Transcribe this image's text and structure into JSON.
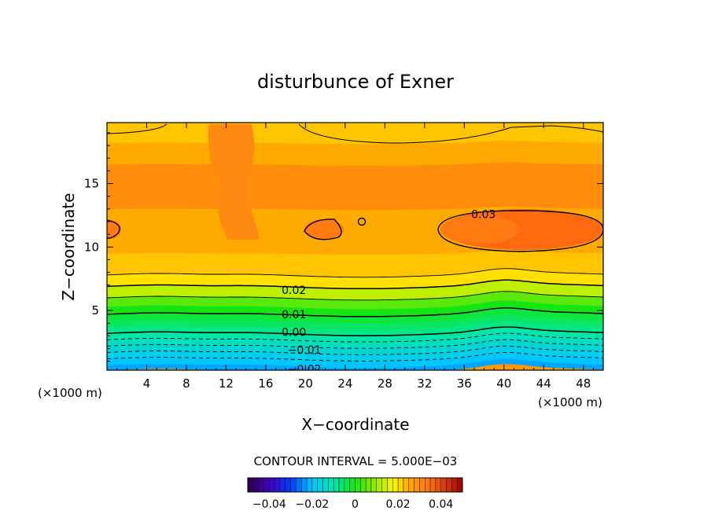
{
  "chart_data": {
    "type": "heatmap",
    "subtype": "filled contour",
    "title": "disturbunce of Exner",
    "xlabel": "X−coordinate",
    "ylabel": "Z−coordinate",
    "x_units": "(×1000 m)",
    "x_units_right": "(×1000 m)",
    "xlim": [
      0,
      50
    ],
    "ylim": [
      0.3,
      19.8
    ],
    "xticks": [
      "4",
      "8",
      "12",
      "16",
      "20",
      "24",
      "28",
      "32",
      "36",
      "40",
      "44",
      "48"
    ],
    "yticks": [
      "5",
      "10",
      "15"
    ],
    "contour_interval_label": "CONTOUR INTERVAL = 5.000E−03",
    "contour_labels": [
      {
        "text": "0.03",
        "x": 36.7,
        "z": 12.6
      },
      {
        "text": "0.02",
        "x": 17.6,
        "z": 6.6
      },
      {
        "text": "0.01",
        "x": 17.6,
        "z": 4.7
      },
      {
        "text": "0.00",
        "x": 17.6,
        "z": 3.3
      },
      {
        "text": "−0.01",
        "x": 18.2,
        "z": 1.9
      },
      {
        "text": "−0.02",
        "x": 18.2,
        "z": 0.4
      }
    ],
    "colorbar": {
      "ticks": [
        "−0.04",
        "−0.02",
        "0",
        "0.02",
        "0.04"
      ],
      "tick_values": [
        -0.04,
        -0.02,
        0,
        0.02,
        0.04
      ],
      "vmin": -0.05,
      "vmax": 0.05
    },
    "z_levels": [
      0.3,
      0.7,
      1.2,
      1.7,
      2.2,
      2.7,
      3.2,
      3.7,
      4.2,
      4.7,
      5.3,
      6.0,
      6.9,
      7.8,
      9.5,
      13.0,
      16.5,
      18.2,
      19.8
    ],
    "level_values": [
      -0.0225,
      -0.02,
      -0.0175,
      -0.015,
      -0.0125,
      -0.01,
      -0.0075,
      -0.005,
      -0.0025,
      0.0,
      0.005,
      0.0125,
      0.02,
      0.0225,
      0.025,
      0.03,
      0.025,
      0.0225,
      0.02
    ]
  }
}
